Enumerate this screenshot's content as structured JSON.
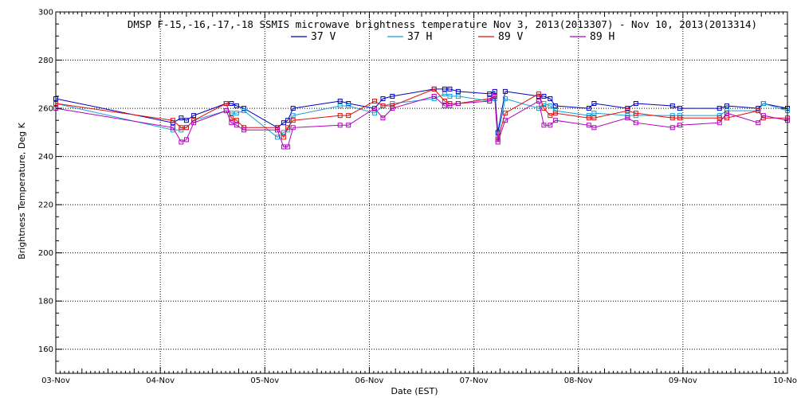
{
  "chart_data": {
    "type": "line",
    "title": "DMSP F-15,-16,-17,-18 SSMIS microwave brightness temperature Nov  3, 2013(2013307) - Nov 10, 2013(2013314)",
    "xlabel": "Date (EST)",
    "ylabel": "Brightness Temperature, Deg K",
    "ylim": [
      150,
      300
    ],
    "yticks": [
      160,
      180,
      200,
      220,
      240,
      260,
      280,
      300
    ],
    "xlim": [
      0,
      7
    ],
    "xtick_labels": [
      "03-Nov",
      "04-Nov",
      "05-Nov",
      "06-Nov",
      "07-Nov",
      "08-Nov",
      "09-Nov",
      "10-Nov"
    ],
    "grid": true,
    "legend_position": "top-center",
    "series": [
      {
        "name": "37 V",
        "color": "#0000bb",
        "x": [
          0.0,
          1.12,
          1.2,
          1.25,
          1.32,
          1.63,
          1.68,
          1.73,
          1.8,
          2.12,
          2.18,
          2.22,
          2.27,
          2.72,
          2.8,
          3.05,
          3.13,
          3.22,
          3.62,
          3.72,
          3.77,
          3.85,
          4.15,
          4.2,
          4.23,
          4.3,
          4.62,
          4.67,
          4.73,
          4.78,
          5.1,
          5.15,
          5.47,
          5.55,
          5.9,
          5.97,
          6.35,
          6.42,
          6.72,
          6.77,
          7.0
        ],
        "values": [
          264,
          254,
          256,
          255,
          257,
          262,
          262,
          261,
          260,
          252,
          254,
          255,
          260,
          263,
          262,
          260,
          264,
          265,
          268,
          268,
          268,
          267,
          266,
          267,
          250,
          267,
          265,
          265,
          264,
          261,
          260,
          262,
          260,
          262,
          261,
          260,
          260,
          261,
          260,
          262,
          260
        ]
      },
      {
        "name": "37 H",
        "color": "#1a9fd6",
        "x": [
          0.0,
          1.12,
          1.2,
          1.25,
          1.32,
          1.63,
          1.68,
          1.73,
          1.8,
          2.12,
          2.18,
          2.22,
          2.27,
          2.72,
          2.8,
          3.05,
          3.13,
          3.22,
          3.62,
          3.72,
          3.77,
          3.85,
          4.15,
          4.2,
          4.23,
          4.3,
          4.62,
          4.67,
          4.73,
          4.78,
          5.1,
          5.15,
          5.47,
          5.55,
          5.9,
          5.97,
          6.35,
          6.42,
          6.72,
          6.77,
          7.0
        ],
        "values": [
          262,
          251,
          251,
          252,
          255,
          259,
          258,
          258,
          259,
          248,
          250,
          251,
          257,
          261,
          261,
          258,
          261,
          262,
          264,
          266,
          265,
          265,
          263,
          264,
          248,
          264,
          260,
          262,
          261,
          259,
          257,
          258,
          257,
          257,
          257,
          257,
          257,
          259,
          259,
          262,
          259
        ]
      },
      {
        "name": "89 V",
        "color": "#dd1111",
        "x": [
          0.0,
          1.12,
          1.2,
          1.25,
          1.32,
          1.63,
          1.68,
          1.73,
          1.8,
          2.12,
          2.18,
          2.22,
          2.27,
          2.72,
          2.8,
          3.05,
          3.13,
          3.22,
          3.62,
          3.72,
          3.77,
          3.85,
          4.15,
          4.2,
          4.23,
          4.3,
          4.62,
          4.67,
          4.73,
          4.78,
          5.1,
          5.15,
          5.47,
          5.55,
          5.9,
          5.97,
          6.35,
          6.42,
          6.72,
          6.77,
          7.0
        ],
        "values": [
          262,
          255,
          252,
          252,
          255,
          262,
          256,
          255,
          252,
          252,
          248,
          252,
          255,
          257,
          257,
          263,
          261,
          261,
          268,
          263,
          262,
          262,
          264,
          265,
          247,
          258,
          266,
          260,
          257,
          258,
          256,
          256,
          259,
          258,
          256,
          256,
          256,
          256,
          259,
          256,
          256
        ]
      },
      {
        "name": "89 H",
        "color": "#b000c0",
        "x": [
          0.0,
          1.12,
          1.2,
          1.25,
          1.32,
          1.63,
          1.68,
          1.73,
          1.8,
          2.12,
          2.18,
          2.22,
          2.27,
          2.72,
          2.8,
          3.05,
          3.13,
          3.22,
          3.62,
          3.72,
          3.77,
          3.85,
          4.15,
          4.2,
          4.23,
          4.3,
          4.62,
          4.67,
          4.73,
          4.78,
          5.1,
          5.15,
          5.47,
          5.55,
          5.9,
          5.97,
          6.35,
          6.42,
          6.72,
          6.77,
          7.0
        ],
        "values": [
          260,
          252,
          246,
          247,
          254,
          259,
          254,
          253,
          251,
          251,
          244,
          244,
          252,
          253,
          253,
          260,
          256,
          260,
          265,
          261,
          261,
          262,
          263,
          265,
          246,
          255,
          263,
          253,
          253,
          255,
          253,
          252,
          256,
          254,
          252,
          253,
          254,
          258,
          254,
          257,
          255
        ]
      }
    ]
  }
}
